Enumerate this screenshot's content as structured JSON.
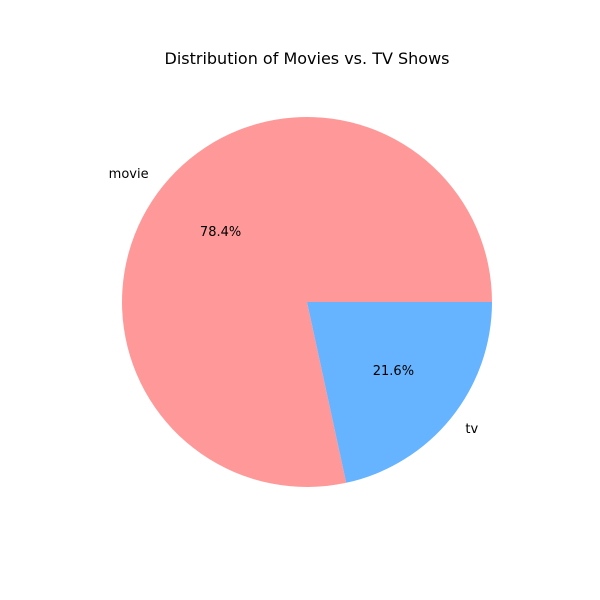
{
  "chart_data": {
    "type": "pie",
    "title": "Distribution of Movies vs. TV Shows",
    "categories": [
      "movie",
      "tv"
    ],
    "values": [
      78.4,
      21.6
    ],
    "pct_labels": [
      "78.4%",
      "21.6%"
    ],
    "colors": [
      "#ff9999",
      "#66b3ff"
    ],
    "start_angle_deg": 0,
    "direction": "counterclockwise"
  }
}
